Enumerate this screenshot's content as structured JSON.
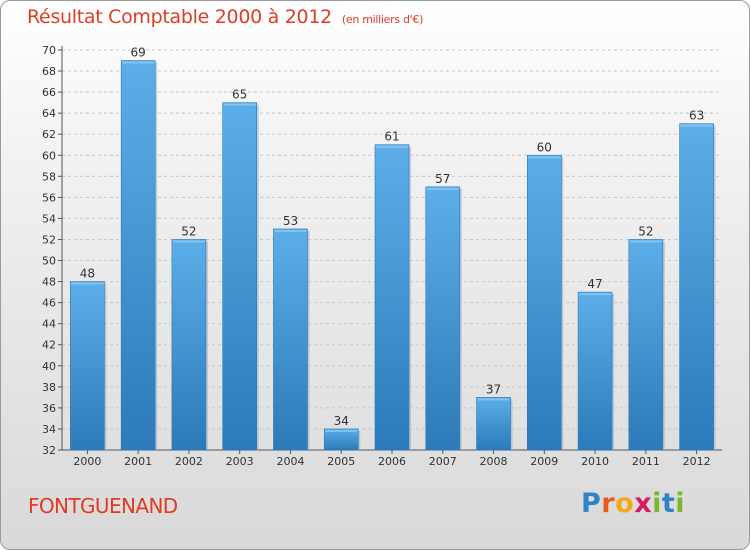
{
  "header": {
    "title": "Résultat Comptable 2000 à 2012",
    "subtitle": "(en milliers d'€)"
  },
  "footer": {
    "place": "FONTGUENAND",
    "logo_letters": [
      "P",
      "r",
      "o",
      "x",
      "i",
      "t",
      "i"
    ],
    "logo_colors": [
      "#2f83c7",
      "#e95a1f",
      "#f4a717",
      "#d81b5e",
      "#7cb82f",
      "#2f83c7",
      "#7cb82f"
    ]
  },
  "chart_data": {
    "type": "bar",
    "title": "Résultat Comptable 2000 à 2012",
    "subtitle": "(en milliers d'€)",
    "xlabel": "",
    "ylabel": "",
    "categories": [
      "2000",
      "2001",
      "2002",
      "2003",
      "2004",
      "2005",
      "2006",
      "2007",
      "2008",
      "2009",
      "2010",
      "2011",
      "2012"
    ],
    "values": [
      48,
      69,
      52,
      65,
      53,
      34,
      61,
      57,
      37,
      60,
      47,
      52,
      63
    ],
    "ylim": [
      32,
      70
    ],
    "ytick_step": 2,
    "grid": true,
    "bar_color": "#4aa0e0",
    "bar_color_dark": "#2a78b8"
  }
}
